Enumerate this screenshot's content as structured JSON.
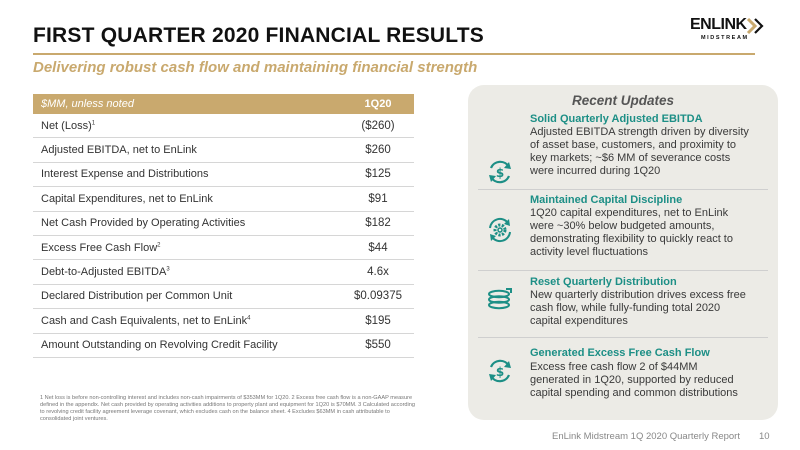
{
  "header": {
    "title": "FIRST QUARTER 2020 FINANCIAL RESULTS",
    "subtitle": "Delivering robust cash flow and maintaining financial strength",
    "logo_word": "ENLINK",
    "logo_sub": "MIDSTREAM"
  },
  "table": {
    "header_label": "$MM, unless noted",
    "header_col": "1Q20",
    "rows": [
      {
        "label": "Net (Loss)",
        "sup": "1",
        "value": "($260)"
      },
      {
        "label": "Adjusted EBITDA, net to EnLink",
        "sup": "",
        "value": "$260"
      },
      {
        "label": "Interest Expense and Distributions",
        "sup": "",
        "value": "$125"
      },
      {
        "label": "Capital Expenditures, net to EnLink",
        "sup": "",
        "value": "$91"
      },
      {
        "label": "Net Cash Provided by Operating Activities",
        "sup": "",
        "value": "$182"
      },
      {
        "label": "Excess Free Cash Flow",
        "sup": "2",
        "value": "$44"
      },
      {
        "label": "Debt-to-Adjusted EBITDA",
        "sup": "3",
        "value": "4.6x"
      },
      {
        "label": "Declared Distribution per Common Unit",
        "sup": "",
        "value": "$0.09375"
      },
      {
        "label": "Cash and Cash Equivalents, net to EnLink",
        "sup": "4",
        "value": "$195"
      },
      {
        "label": "Amount Outstanding on Revolving Credit Facility",
        "sup": "",
        "value": "$550"
      }
    ]
  },
  "footnote": "1 Net loss is before non-controlling interest and includes non-cash impairments of $353MM for 1Q20. 2 Excess free cash flow is a non-GAAP measure defined in the appendix. Net cash provided by operating activities additions to property plant and equipment for 1Q20 is $70MM. 3 Calculated according to revolving credit facility agreement leverage covenant, which excludes cash on the balance sheet. 4 Excludes $63MM in cash attributable to consolidated joint ventures.",
  "panel": {
    "title": "Recent Updates",
    "updates": [
      {
        "icon": "dollar-cycle-icon",
        "heading": "Solid Quarterly Adjusted EBITDA",
        "lines": [
          "Adjusted EBITDA strength driven by diversity",
          "of asset base, customers, and proximity to",
          "key markets; ~$6 MM of severance costs",
          "were incurred during 1Q20"
        ]
      },
      {
        "icon": "gear-cycle-icon",
        "heading": "Maintained Capital Discipline",
        "lines": [
          "1Q20 capital expenditures, net to EnLink",
          "were ~30% below budgeted amounts,",
          "demonstrating flexibility to quickly react to",
          "activity level fluctuations"
        ]
      },
      {
        "icon": "coins-stack-icon",
        "heading": "Reset Quarterly Distribution",
        "lines": [
          "New quarterly distribution drives excess free",
          "cash flow, while fully-funding total 2020",
          "capital expenditures"
        ]
      },
      {
        "icon": "dollar-cycle-icon",
        "heading": "Generated Excess Free Cash Flow",
        "lines": [
          "Excess free cash flow 2 of $44MM",
          "generated in 1Q20, supported by reduced",
          "capital spending and common distributions"
        ]
      }
    ]
  },
  "footer": {
    "report": "EnLink Midstream 1Q 2020 Quarterly Report",
    "page": "10"
  },
  "colors": {
    "gold": "#c9a96e",
    "teal": "#1d8f86",
    "panel": "#ecebe6"
  }
}
